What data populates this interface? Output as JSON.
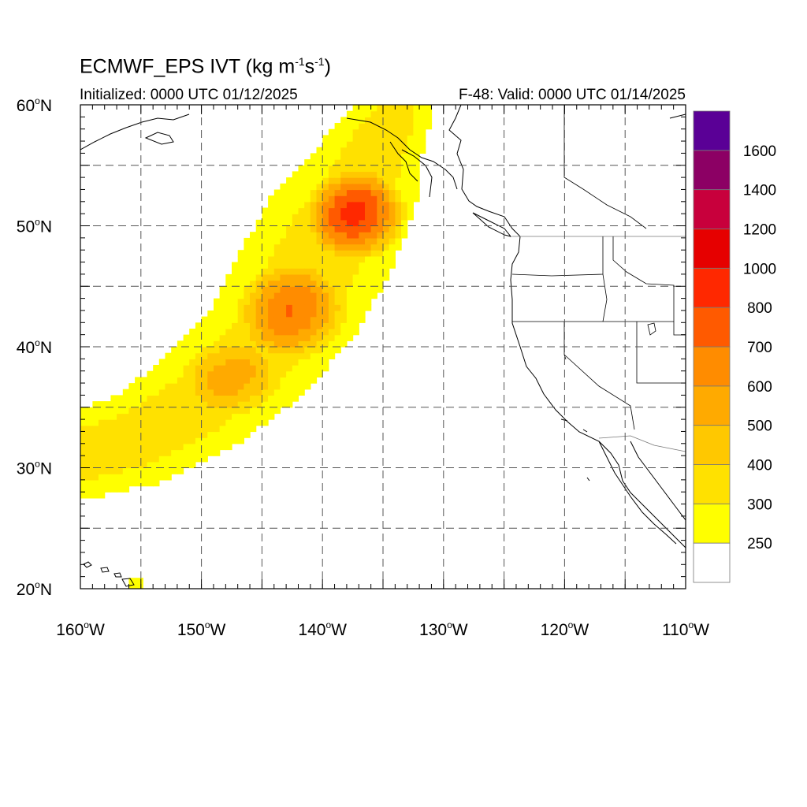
{
  "header": {
    "title_main": "ECMWF_EPS IVT (kg m",
    "title_sup1": "-1",
    "title_mid": "s",
    "title_sup2": "-1",
    "title_end": ")",
    "init": "Initialized: 0000 UTC 01/12/2025",
    "valid": "F-48: Valid: 0000 UTC 01/14/2025"
  },
  "map": {
    "lon_range": [
      -160,
      -110
    ],
    "lat_range": [
      20,
      60
    ],
    "lat_labels": [
      {
        "lat": 60,
        "num": "60",
        "sup": "o",
        "hem": "N"
      },
      {
        "lat": 50,
        "num": "50",
        "sup": "o",
        "hem": "N"
      },
      {
        "lat": 40,
        "num": "40",
        "sup": "o",
        "hem": "N"
      },
      {
        "lat": 30,
        "num": "30",
        "sup": "o",
        "hem": "N"
      },
      {
        "lat": 20,
        "num": "20",
        "sup": "o",
        "hem": "N"
      }
    ],
    "lon_labels": [
      {
        "lon": -160,
        "num": "160",
        "sup": "o",
        "hem": "W"
      },
      {
        "lon": -150,
        "num": "150",
        "sup": "o",
        "hem": "W"
      },
      {
        "lon": -140,
        "num": "140",
        "sup": "o",
        "hem": "W"
      },
      {
        "lon": -130,
        "num": "130",
        "sup": "o",
        "hem": "W"
      },
      {
        "lon": -120,
        "num": "120",
        "sup": "o",
        "hem": "W"
      },
      {
        "lon": -110,
        "num": "110",
        "sup": "o",
        "hem": "W"
      }
    ]
  },
  "colorbar": {
    "colors": [
      "#ffffff",
      "#ffff00",
      "#ffe100",
      "#ffc800",
      "#ffaa00",
      "#ff8c00",
      "#ff5a00",
      "#ff2800",
      "#e60000",
      "#c8003c",
      "#8c0064",
      "#5a0096"
    ],
    "labels": [
      "250",
      "300",
      "400",
      "500",
      "600",
      "700",
      "800",
      "1000",
      "1200",
      "1400",
      "1600"
    ]
  },
  "ivt_field": {
    "thresholds": [
      250,
      300,
      400,
      500,
      600,
      700
    ],
    "river_axis": [
      {
        "lon": -160.0,
        "lat": 31.0,
        "width": 3.6
      },
      {
        "lon": -155.0,
        "lat": 32.5,
        "width": 4.0
      },
      {
        "lon": -150.0,
        "lat": 35.5,
        "width": 4.6
      },
      {
        "lon": -145.0,
        "lat": 40.0,
        "width": 5.2
      },
      {
        "lon": -142.0,
        "lat": 44.5,
        "width": 5.8
      },
      {
        "lon": -139.5,
        "lat": 49.0,
        "width": 5.8
      },
      {
        "lon": -137.0,
        "lat": 53.0,
        "width": 5.0
      },
      {
        "lon": -135.5,
        "lat": 56.5,
        "width": 4.0
      },
      {
        "lon": -134.0,
        "lat": 59.0,
        "width": 3.0
      }
    ],
    "core": [
      {
        "lon": -137.2,
        "lat": 51.0,
        "amp": 480,
        "rlon": 4.2,
        "rlat": 3.8
      },
      {
        "lon": -142.5,
        "lat": 43.0,
        "amp": 340,
        "rlon": 4.5,
        "rlat": 4.0
      },
      {
        "lon": -147.5,
        "lat": 37.5,
        "amp": 200,
        "rlon": 4.0,
        "rlat": 3.0
      }
    ],
    "hawaii_patch": [
      {
        "lon": -156.0,
        "lat": 20.3,
        "value": 280
      }
    ]
  }
}
